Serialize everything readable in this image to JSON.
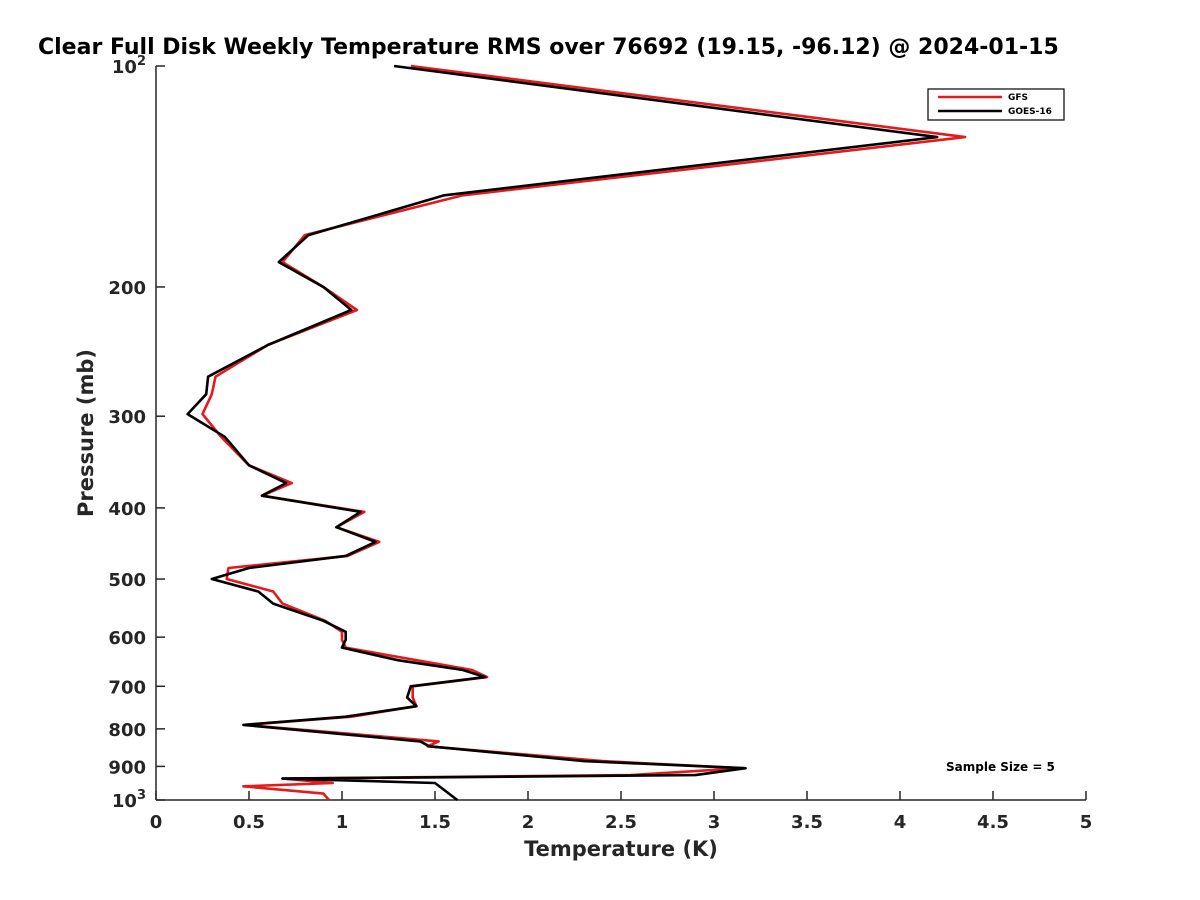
{
  "chart_data": {
    "type": "line",
    "title": "Clear Full Disk Weekly Temperature RMS over 76692 (19.15, -96.12) @ 2024-01-15",
    "xlabel": "Temperature (K)",
    "ylabel": "Pressure (mb)",
    "xlim": [
      0,
      5
    ],
    "ylim": [
      100,
      1000
    ],
    "yscale": "log",
    "y_reversed": true,
    "x_ticks": [
      0,
      0.5,
      1,
      1.5,
      2,
      2.5,
      3,
      3.5,
      4,
      4.5,
      5
    ],
    "x_tick_labels": [
      "0",
      "0.5",
      "1",
      "1.5",
      "2",
      "2.5",
      "3",
      "3.5",
      "4",
      "4.5",
      "5"
    ],
    "y_ticks": [
      {
        "value": 100,
        "base": "10",
        "exp": "2"
      },
      {
        "value": 200,
        "label": "200"
      },
      {
        "value": 300,
        "label": "300"
      },
      {
        "value": 400,
        "label": "400"
      },
      {
        "value": 500,
        "label": "500"
      },
      {
        "value": 600,
        "label": "600"
      },
      {
        "value": 700,
        "label": "700"
      },
      {
        "value": 800,
        "label": "800"
      },
      {
        "value": 900,
        "label": "900"
      },
      {
        "value": 1000,
        "base": "10",
        "exp": "3"
      }
    ],
    "legend": {
      "placement": "top-right"
    },
    "annotation": "Sample Size = 5",
    "grid": false,
    "series": [
      {
        "name": "GFS",
        "color": "#e41a1c",
        "points": [
          [
            1.37,
            100
          ],
          [
            4.35,
            125
          ],
          [
            1.65,
            150
          ],
          [
            0.8,
            170
          ],
          [
            0.68,
            185
          ],
          [
            0.9,
            200
          ],
          [
            1.08,
            215
          ],
          [
            0.6,
            240
          ],
          [
            0.32,
            265
          ],
          [
            0.3,
            280
          ],
          [
            0.25,
            298
          ],
          [
            0.35,
            320
          ],
          [
            0.5,
            350
          ],
          [
            0.73,
            370
          ],
          [
            0.57,
            385
          ],
          [
            1.12,
            405
          ],
          [
            0.97,
            425
          ],
          [
            1.2,
            445
          ],
          [
            1.03,
            465
          ],
          [
            0.39,
            483
          ],
          [
            0.38,
            500
          ],
          [
            0.63,
            520
          ],
          [
            0.68,
            540
          ],
          [
            0.91,
            570
          ],
          [
            1.0,
            590
          ],
          [
            1.0,
            605
          ],
          [
            1.02,
            620
          ],
          [
            1.4,
            645
          ],
          [
            1.7,
            665
          ],
          [
            1.78,
            680
          ],
          [
            1.38,
            700
          ],
          [
            1.38,
            725
          ],
          [
            1.4,
            745
          ],
          [
            1.05,
            770
          ],
          [
            0.48,
            790
          ],
          [
            1.52,
            832
          ],
          [
            1.46,
            845
          ],
          [
            2.4,
            885
          ],
          [
            3.15,
            905
          ],
          [
            2.55,
            925
          ],
          [
            0.68,
            935
          ],
          [
            0.95,
            948
          ],
          [
            0.47,
            958
          ],
          [
            0.9,
            980
          ],
          [
            0.93,
            1000
          ]
        ]
      },
      {
        "name": "GOES-16",
        "color": "#000000",
        "points": [
          [
            1.28,
            100
          ],
          [
            4.2,
            125
          ],
          [
            1.55,
            150
          ],
          [
            0.82,
            170
          ],
          [
            0.66,
            185
          ],
          [
            0.9,
            200
          ],
          [
            1.05,
            215
          ],
          [
            0.6,
            240
          ],
          [
            0.28,
            265
          ],
          [
            0.27,
            280
          ],
          [
            0.17,
            298
          ],
          [
            0.37,
            320
          ],
          [
            0.5,
            350
          ],
          [
            0.7,
            370
          ],
          [
            0.57,
            385
          ],
          [
            1.1,
            405
          ],
          [
            0.97,
            425
          ],
          [
            1.18,
            445
          ],
          [
            1.02,
            465
          ],
          [
            0.5,
            483
          ],
          [
            0.3,
            500
          ],
          [
            0.55,
            520
          ],
          [
            0.63,
            540
          ],
          [
            0.9,
            570
          ],
          [
            1.02,
            590
          ],
          [
            1.02,
            605
          ],
          [
            1.0,
            620
          ],
          [
            1.3,
            645
          ],
          [
            1.65,
            665
          ],
          [
            1.77,
            680
          ],
          [
            1.37,
            700
          ],
          [
            1.35,
            725
          ],
          [
            1.4,
            745
          ],
          [
            1.02,
            770
          ],
          [
            0.47,
            790
          ],
          [
            1.42,
            832
          ],
          [
            1.47,
            845
          ],
          [
            2.3,
            885
          ],
          [
            3.17,
            905
          ],
          [
            2.9,
            925
          ],
          [
            0.68,
            935
          ],
          [
            1.5,
            948
          ],
          [
            1.62,
            1000
          ]
        ]
      }
    ]
  }
}
